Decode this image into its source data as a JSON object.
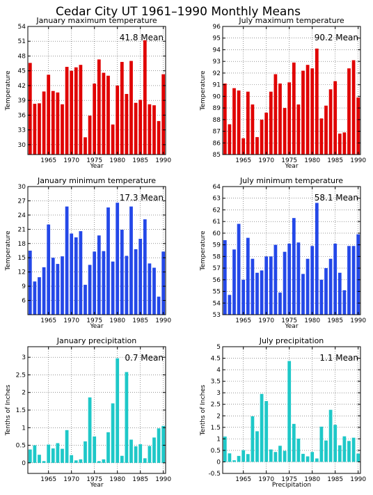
{
  "page_title": "Cedar City UT  1961–1990 Monthly Means",
  "chart_data": [
    {
      "type": "bar",
      "title": "January maximum temperature",
      "annotation": "41.8 Mean",
      "xlabel": "Year",
      "ylabel": "Temperature",
      "ylim": [
        28,
        54
      ],
      "yticks": [
        30,
        33,
        36,
        39,
        42,
        45,
        48,
        51,
        54
      ],
      "xlim": [
        1960.5,
        1990.5
      ],
      "xticks": [
        1965,
        1970,
        1975,
        1980,
        1985,
        1990
      ],
      "color": "#e00000",
      "x": [
        1961,
        1962,
        1963,
        1964,
        1965,
        1966,
        1967,
        1968,
        1969,
        1970,
        1971,
        1972,
        1973,
        1974,
        1975,
        1976,
        1977,
        1978,
        1979,
        1980,
        1981,
        1982,
        1983,
        1984,
        1985,
        1986,
        1987,
        1988,
        1989,
        1990
      ],
      "values": [
        46.6,
        38.3,
        38.4,
        40.8,
        44.2,
        40.9,
        40.6,
        38.2,
        45.8,
        45.0,
        45.7,
        46.2,
        31.5,
        35.9,
        42.4,
        47.3,
        44.6,
        44.0,
        34.1,
        42.0,
        46.8,
        40.3,
        47.0,
        38.5,
        39.1,
        51.2,
        38.2,
        38.0,
        34.8,
        44.3
      ]
    },
    {
      "type": "bar",
      "title": "July maximum temperature",
      "annotation": "90.2 Mean",
      "xlabel": "Year",
      "ylabel": "Temperature",
      "ylim": [
        85,
        96
      ],
      "yticks": [
        85,
        86,
        87,
        88,
        89,
        90,
        91,
        92,
        93,
        94,
        95,
        96
      ],
      "xlim": [
        1960.5,
        1990.5
      ],
      "xticks": [
        1965,
        1970,
        1975,
        1980,
        1985,
        1990
      ],
      "color": "#e00000",
      "x": [
        1961,
        1962,
        1963,
        1964,
        1965,
        1966,
        1967,
        1968,
        1969,
        1970,
        1971,
        1972,
        1973,
        1974,
        1975,
        1976,
        1977,
        1978,
        1979,
        1980,
        1981,
        1982,
        1983,
        1984,
        1985,
        1986,
        1987,
        1988,
        1989,
        1990
      ],
      "values": [
        91.1,
        87.6,
        90.7,
        90.5,
        86.4,
        90.4,
        89.3,
        86.5,
        88.0,
        88.6,
        90.4,
        91.9,
        91.1,
        89.0,
        91.2,
        92.9,
        89.3,
        92.2,
        92.7,
        92.4,
        94.1,
        88.1,
        89.2,
        90.6,
        91.3,
        86.8,
        86.9,
        92.4,
        93.1,
        89.9
      ]
    },
    {
      "type": "bar",
      "title": "January minimum temperature",
      "annotation": "17.3 Mean",
      "xlabel": "Year",
      "ylabel": "Temperature",
      "ylim": [
        3,
        30
      ],
      "yticks": [
        6,
        9,
        12,
        15,
        18,
        21,
        24,
        27,
        30
      ],
      "xlim": [
        1960.5,
        1990.5
      ],
      "xticks": [
        1965,
        1970,
        1975,
        1980,
        1985,
        1990
      ],
      "color": "#2448e8",
      "x": [
        1961,
        1962,
        1963,
        1964,
        1965,
        1966,
        1967,
        1968,
        1969,
        1970,
        1971,
        1972,
        1973,
        1974,
        1975,
        1976,
        1977,
        1978,
        1979,
        1980,
        1981,
        1982,
        1983,
        1984,
        1985,
        1986,
        1987,
        1988,
        1989,
        1990
      ],
      "values": [
        16.5,
        10.0,
        10.9,
        13.0,
        22.0,
        15.0,
        13.7,
        15.3,
        25.8,
        20.1,
        19.3,
        20.6,
        9.3,
        13.5,
        16.3,
        19.7,
        16.4,
        25.6,
        14.2,
        26.6,
        20.9,
        15.4,
        25.8,
        16.8,
        19.0,
        23.1,
        13.8,
        12.9,
        6.8,
        16.3
      ]
    },
    {
      "type": "bar",
      "title": "July minimum temperature",
      "annotation": "58.1 Mean",
      "xlabel": "Year",
      "ylabel": "Temperature",
      "ylim": [
        53,
        64
      ],
      "yticks": [
        53,
        54,
        55,
        56,
        57,
        58,
        59,
        60,
        61,
        62,
        63,
        64
      ],
      "xlim": [
        1960.5,
        1990.5
      ],
      "xticks": [
        1965,
        1970,
        1975,
        1980,
        1985,
        1990
      ],
      "color": "#2448e8",
      "x": [
        1961,
        1962,
        1963,
        1964,
        1965,
        1966,
        1967,
        1968,
        1969,
        1970,
        1971,
        1972,
        1973,
        1974,
        1975,
        1976,
        1977,
        1978,
        1979,
        1980,
        1981,
        1982,
        1983,
        1984,
        1985,
        1986,
        1987,
        1988,
        1989,
        1990
      ],
      "values": [
        59.4,
        54.7,
        58.6,
        60.8,
        56.0,
        59.6,
        57.8,
        56.6,
        56.8,
        58.0,
        58.0,
        59.0,
        54.9,
        58.4,
        59.1,
        61.3,
        59.2,
        56.5,
        57.8,
        58.9,
        62.6,
        56.0,
        57.0,
        57.8,
        59.1,
        56.6,
        55.1,
        58.9,
        58.9,
        59.9
      ]
    },
    {
      "type": "bar",
      "title": "January precipitation",
      "annotation": "0.7 Mean",
      "xlabel": "Year",
      "ylabel": "Tenths of Inches",
      "ylim": [
        -0.3,
        3.3
      ],
      "yticks": [
        0,
        0.5,
        1,
        1.5,
        2,
        2.5,
        3
      ],
      "yticklabels": [
        "0",
        "0.5",
        "1",
        "1.5",
        "2",
        "2.5",
        "3"
      ],
      "xlim": [
        1960.5,
        1990.5
      ],
      "xticks": [
        1965,
        1970,
        1975,
        1980,
        1985,
        1990
      ],
      "color": "#1ec8c8",
      "x": [
        1961,
        1962,
        1963,
        1964,
        1965,
        1966,
        1967,
        1968,
        1969,
        1970,
        1971,
        1972,
        1973,
        1974,
        1975,
        1976,
        1977,
        1978,
        1979,
        1980,
        1981,
        1982,
        1983,
        1984,
        1985,
        1986,
        1987,
        1988,
        1989,
        1990
      ],
      "values": [
        0.38,
        0.5,
        0.23,
        0.05,
        0.52,
        0.41,
        0.56,
        0.4,
        0.93,
        0.22,
        0.07,
        0.1,
        0.61,
        1.86,
        0.75,
        0.05,
        0.1,
        0.87,
        1.69,
        2.97,
        0.2,
        2.58,
        0.66,
        0.47,
        0.53,
        0.13,
        0.48,
        0.72,
        0.98,
        1.05
      ]
    },
    {
      "type": "bar",
      "title": "July precipitation",
      "annotation": "1.1 Mean",
      "xlabel": "Precipitation",
      "ylabel": "Tenths of Inches",
      "ylim": [
        -0.5,
        5
      ],
      "yticks": [
        -0.5,
        0,
        0.5,
        1,
        1.5,
        2,
        2.5,
        3,
        3.5,
        4,
        4.5,
        5
      ],
      "yticklabels": [
        "-0.5",
        "0",
        "0.5",
        "1",
        "1.5",
        "2",
        "2.5",
        "3",
        "3.5",
        "4",
        "4.5",
        "5"
      ],
      "xlim": [
        1960.5,
        1990.5
      ],
      "xticks": [
        1965,
        1970,
        1975,
        1980,
        1985,
        1990
      ],
      "color": "#1ec8c8",
      "x": [
        1961,
        1962,
        1963,
        1964,
        1965,
        1966,
        1967,
        1968,
        1969,
        1970,
        1971,
        1972,
        1973,
        1974,
        1975,
        1976,
        1977,
        1978,
        1979,
        1980,
        1981,
        1982,
        1983,
        1984,
        1985,
        1986,
        1987,
        1988,
        1989,
        1990
      ],
      "values": [
        1.1,
        0.37,
        0.07,
        0.26,
        0.51,
        0.34,
        1.98,
        1.33,
        2.95,
        2.64,
        0.54,
        0.43,
        0.7,
        0.48,
        4.38,
        1.65,
        1.01,
        0.35,
        0.24,
        0.43,
        0.15,
        1.53,
        0.93,
        2.26,
        1.61,
        0.72,
        1.11,
        0.91,
        1.05,
        0.36
      ]
    }
  ]
}
